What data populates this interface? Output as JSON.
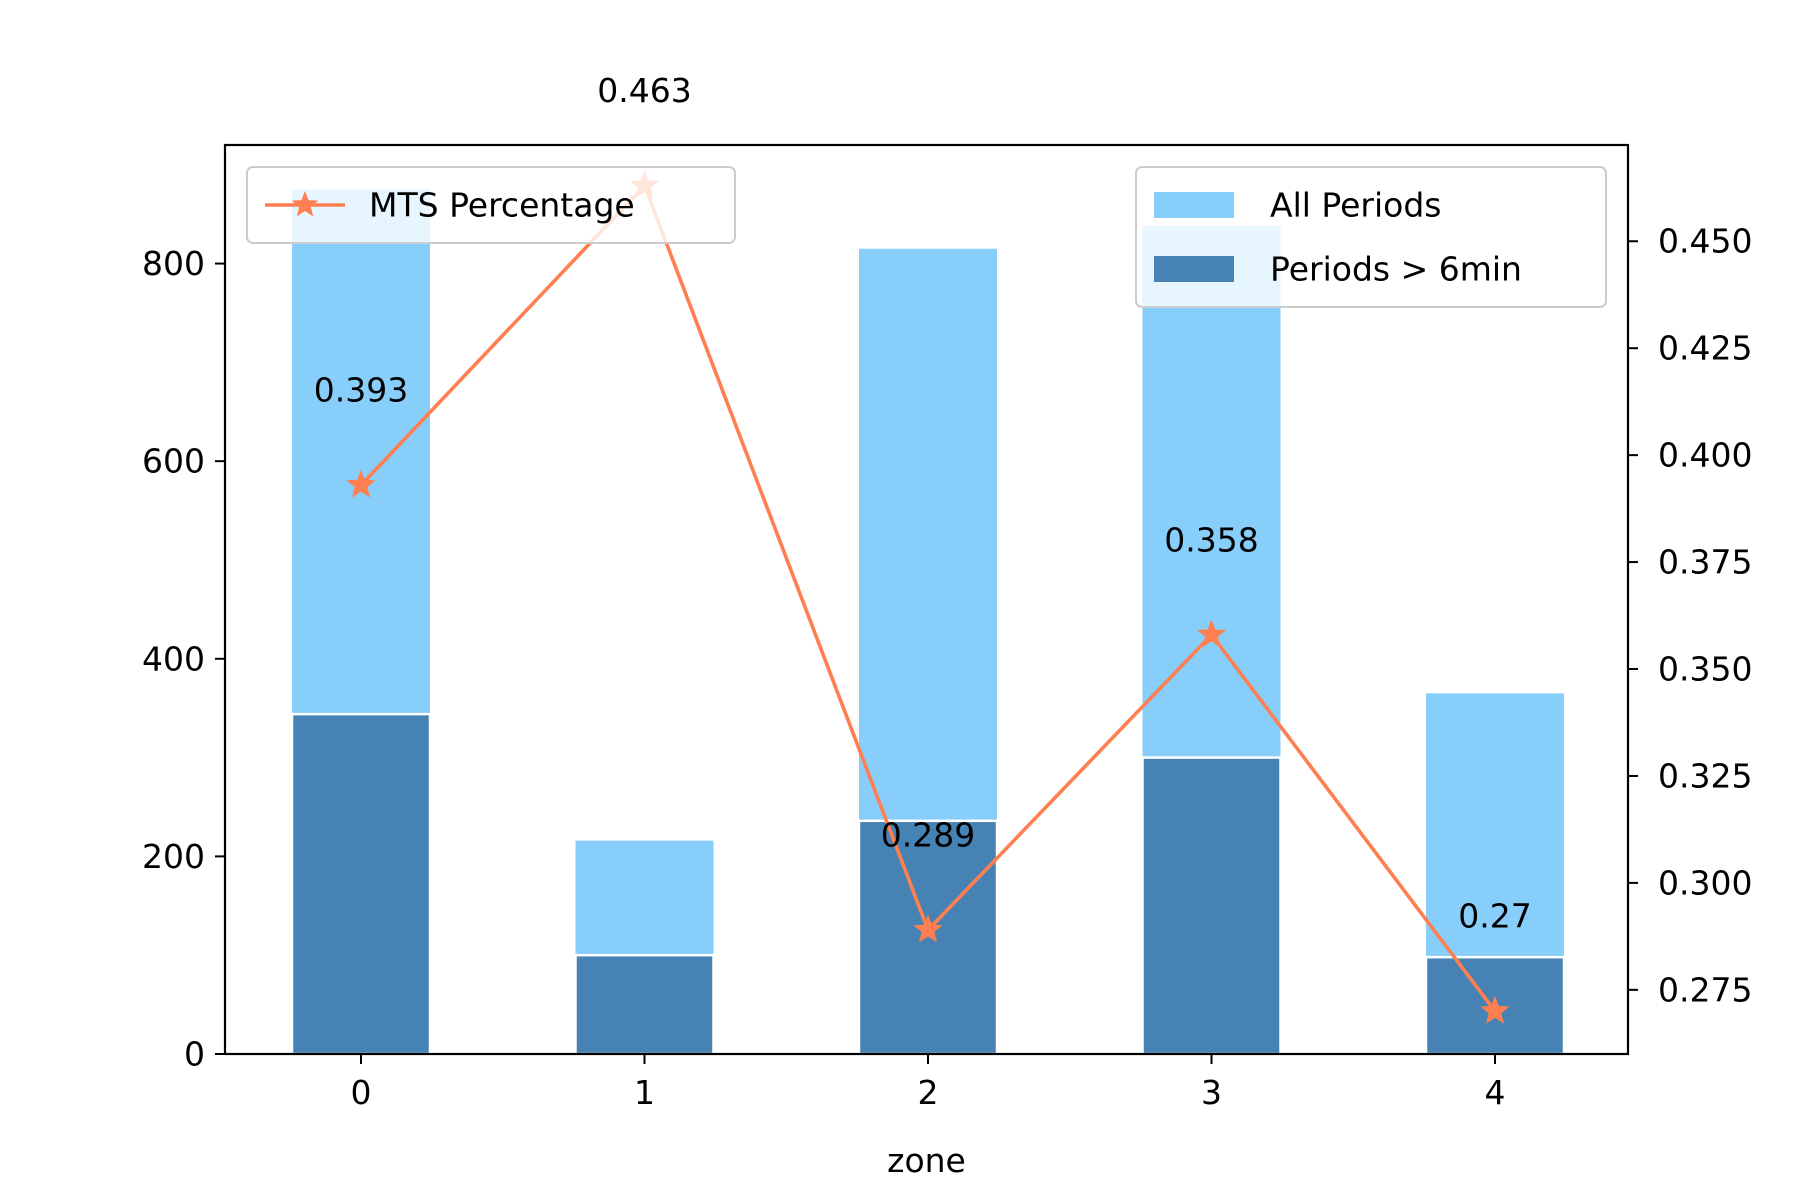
{
  "chart_data": {
    "type": "bar",
    "categories": [
      "0",
      "1",
      "2",
      "3",
      "4"
    ],
    "xlabel": "zone",
    "ylabel": "",
    "title": "",
    "ylim": [
      0,
      920
    ],
    "y_ticks": [
      0,
      200,
      400,
      600,
      800
    ],
    "y2lim": [
      0.26,
      0.4725
    ],
    "y2_ticks": [
      0.275,
      0.3,
      0.325,
      0.35,
      0.375,
      0.4,
      0.425,
      0.45
    ],
    "series": [
      {
        "name": "All Periods",
        "type": "bar",
        "axis": "left",
        "color": "#87CEFA",
        "values": [
          875,
          216,
          815,
          838,
          365
        ]
      },
      {
        "name": "Periods > 6min",
        "type": "bar",
        "axis": "left",
        "color": "#4682B4",
        "values": [
          344,
          100,
          236,
          300,
          98
        ]
      },
      {
        "name": "MTS Percentage",
        "type": "line",
        "axis": "right",
        "marker": "star",
        "color": "#FF7F50",
        "values": [
          0.393,
          0.463,
          0.289,
          0.358,
          0.27
        ],
        "labels": [
          "0.393",
          "0.463",
          "0.289",
          "0.358",
          "0.27"
        ]
      }
    ],
    "legends": [
      {
        "position": "upper-left",
        "entries": [
          "MTS Percentage"
        ]
      },
      {
        "position": "upper-right",
        "entries": [
          "All Periods",
          "Periods > 6min"
        ]
      }
    ]
  }
}
